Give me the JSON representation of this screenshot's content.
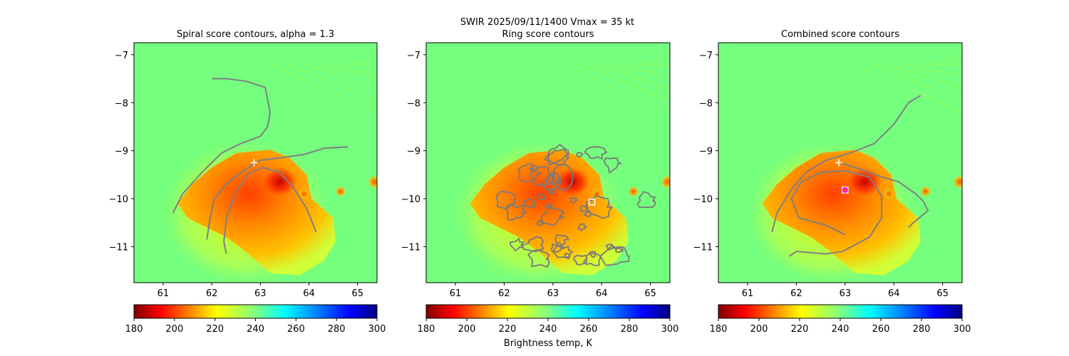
{
  "suptitle_line": "SWIR  2025/09/11/1400    Vmax = 35 kt",
  "chart_data": [
    {
      "type": "heatmap",
      "title": "Spiral score contours, alpha =  1.3",
      "xlim": [
        60.4,
        65.4
      ],
      "ylim": [
        -11.75,
        -6.75
      ],
      "xticks": [
        61,
        62,
        63,
        64,
        65
      ],
      "yticks": [
        -7,
        -8,
        -9,
        -10,
        -11
      ],
      "contours": [
        [
          [
            62.0,
            -7.5
          ],
          [
            62.3,
            -7.5
          ],
          [
            62.7,
            -7.55
          ],
          [
            63.1,
            -7.68
          ],
          [
            63.15,
            -7.93
          ],
          [
            63.2,
            -8.2
          ],
          [
            63.15,
            -8.5
          ],
          [
            63.0,
            -8.7
          ],
          [
            62.6,
            -8.85
          ],
          [
            62.2,
            -9.05
          ],
          [
            61.8,
            -9.45
          ],
          [
            61.4,
            -9.9
          ],
          [
            61.2,
            -10.3
          ]
        ],
        [
          [
            61.9,
            -10.85
          ],
          [
            61.95,
            -10.5
          ],
          [
            62.05,
            -10.0
          ],
          [
            62.3,
            -9.7
          ],
          [
            62.6,
            -9.45
          ],
          [
            63.0,
            -9.2
          ],
          [
            63.4,
            -9.15
          ],
          [
            63.9,
            -9.08
          ],
          [
            64.3,
            -8.95
          ],
          [
            64.8,
            -8.92
          ]
        ],
        [
          [
            62.3,
            -11.15
          ],
          [
            62.25,
            -10.9
          ],
          [
            62.3,
            -10.4
          ],
          [
            62.5,
            -9.85
          ],
          [
            62.75,
            -9.48
          ],
          [
            63.05,
            -9.35
          ],
          [
            63.4,
            -9.45
          ],
          [
            63.7,
            -9.8
          ],
          [
            63.95,
            -10.2
          ],
          [
            64.15,
            -10.7
          ]
        ]
      ],
      "markers": [
        {
          "kind": "plus",
          "x": 62.87,
          "y": -9.25,
          "color": "#ffffff"
        }
      ]
    },
    {
      "type": "heatmap",
      "title": "Ring score contours",
      "xlim": [
        60.4,
        65.4
      ],
      "ylim": [
        -11.75,
        -6.75
      ],
      "xticks": [
        61,
        62,
        63,
        64,
        65
      ],
      "yticks": [
        -7,
        -8,
        -9,
        -10,
        -11
      ],
      "ring_region": {
        "x": [
          61.9,
          65.0
        ],
        "y": [
          -11.4,
          -8.95
        ]
      },
      "markers": [
        {
          "kind": "square",
          "x": 63.8,
          "y": -10.07,
          "color": "#ffffff"
        }
      ]
    },
    {
      "type": "heatmap",
      "title": "Combined score contours",
      "xlim": [
        60.4,
        65.4
      ],
      "ylim": [
        -11.75,
        -6.75
      ],
      "xticks": [
        61,
        62,
        63,
        64,
        65
      ],
      "yticks": [
        -7,
        -8,
        -9,
        -10,
        -11
      ],
      "contours": [
        [
          [
            61.5,
            -10.7
          ],
          [
            61.6,
            -10.3
          ],
          [
            61.9,
            -9.8
          ],
          [
            62.2,
            -9.45
          ],
          [
            62.6,
            -9.2
          ],
          [
            63.1,
            -9.05
          ],
          [
            63.6,
            -8.85
          ],
          [
            64.0,
            -8.45
          ],
          [
            64.3,
            -8.0
          ],
          [
            64.55,
            -7.85
          ]
        ],
        [
          [
            62.9,
            -9.25
          ],
          [
            63.3,
            -9.38
          ],
          [
            63.6,
            -9.5
          ],
          [
            64.1,
            -9.65
          ],
          [
            64.45,
            -9.9
          ],
          [
            64.6,
            -10.05
          ],
          [
            64.7,
            -10.25
          ],
          [
            64.4,
            -10.5
          ],
          [
            64.3,
            -10.6
          ]
        ],
        [
          [
            63.0,
            -10.75
          ],
          [
            62.6,
            -10.55
          ],
          [
            62.05,
            -10.4
          ],
          [
            61.9,
            -10.0
          ],
          [
            62.1,
            -9.65
          ],
          [
            62.5,
            -9.45
          ],
          [
            63.0,
            -9.42
          ],
          [
            63.5,
            -9.55
          ],
          [
            63.75,
            -9.95
          ],
          [
            63.75,
            -10.4
          ],
          [
            63.5,
            -10.8
          ],
          [
            62.95,
            -11.1
          ],
          [
            62.6,
            -11.15
          ],
          [
            62.0,
            -11.1
          ],
          [
            61.85,
            -11.2
          ]
        ]
      ],
      "markers": [
        {
          "kind": "plus",
          "x": 62.87,
          "y": -9.25,
          "color": "#ffffff"
        },
        {
          "kind": "square",
          "x": 63.0,
          "y": -9.82,
          "color": "#ffffff"
        },
        {
          "kind": "circle",
          "x": 63.0,
          "y": -9.82,
          "color": "#ff00ff"
        }
      ]
    }
  ],
  "colorbars": [
    {
      "ticks": [
        180,
        200,
        220,
        240,
        260,
        280,
        300
      ],
      "label": ""
    },
    {
      "ticks": [
        180,
        200,
        220,
        240,
        260,
        280,
        300
      ],
      "label": "Brightness temp, K"
    },
    {
      "ticks": [
        180,
        200,
        220,
        240,
        260,
        280,
        300
      ],
      "label": ""
    }
  ],
  "colormap": "jet_r",
  "colorbar_range": [
    180,
    300
  ]
}
